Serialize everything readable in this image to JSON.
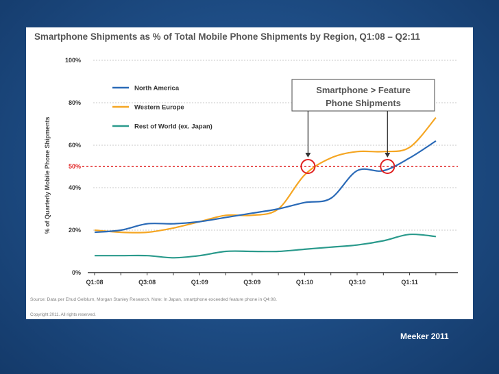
{
  "footnote": "Source: Data per Ehud Gelblum, Morgan Stanley Research. Note: In Japan, smartphone exceeded feature phone in Q4:08.",
  "copyright": "Copyright 2011. All rights reserved.",
  "attribution": "Meeker 2011",
  "colors": {
    "north_america": "#2a6ab7",
    "western_europe": "#f5a623",
    "rest_of_world": "#2a9a8c",
    "threshold": "#e02020",
    "circles": "#e02020"
  },
  "chart_data": {
    "type": "line",
    "title": "Smartphone Shipments as % of Total Mobile Phone Shipments by Region, Q1:08 – Q2:11",
    "xlabel": "",
    "ylabel": "% of Quarterly Mobile Phone Shipments",
    "categories": [
      "Q1:08",
      "Q2:08",
      "Q3:08",
      "Q4:08",
      "Q1:09",
      "Q2:09",
      "Q3:09",
      "Q4:09",
      "Q1:10",
      "Q2:10",
      "Q3:10",
      "Q4:10",
      "Q1:11",
      "Q2:11"
    ],
    "x_tick_labels": [
      "Q1:08",
      "Q3:08",
      "Q1:09",
      "Q3:09",
      "Q1:10",
      "Q3:10",
      "Q1:11"
    ],
    "y_tick_labels": [
      "0%",
      "20%",
      "40%",
      "60%",
      "80%",
      "100%"
    ],
    "y_ticks": [
      0,
      20,
      40,
      60,
      80,
      100
    ],
    "ylim": [
      0,
      100
    ],
    "grid": "horizontal dotted",
    "legend_position": "top-left",
    "series": [
      {
        "name": "North America",
        "values": [
          19,
          20,
          23,
          23,
          24,
          26,
          28,
          30,
          33,
          35,
          48,
          48,
          54,
          62
        ]
      },
      {
        "name": "Western Europe",
        "values": [
          20,
          19,
          19,
          21,
          24,
          27,
          27,
          30,
          46,
          54,
          57,
          57,
          59,
          73
        ]
      },
      {
        "name": "Rest of World (ex. Japan)",
        "values": [
          8,
          8,
          8,
          7,
          8,
          10,
          10,
          10,
          11,
          12,
          13,
          15,
          18,
          17
        ]
      }
    ],
    "threshold": {
      "value": 50,
      "label": "50%"
    },
    "annotation": {
      "text_line1": "Smartphone > Feature",
      "text_line2": "Phone Shipments"
    },
    "crossover_points": [
      {
        "x": "Q1:10",
        "value": 50
      },
      {
        "x": "Q4:10",
        "value": 50
      }
    ]
  }
}
